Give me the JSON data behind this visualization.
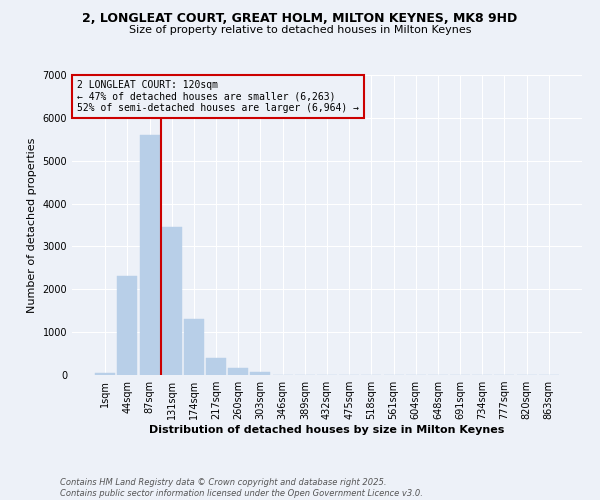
{
  "title_line1": "2, LONGLEAT COURT, GREAT HOLM, MILTON KEYNES, MK8 9HD",
  "title_line2": "Size of property relative to detached houses in Milton Keynes",
  "xlabel": "Distribution of detached houses by size in Milton Keynes",
  "ylabel": "Number of detached properties",
  "categories": [
    "1sqm",
    "44sqm",
    "87sqm",
    "131sqm",
    "174sqm",
    "217sqm",
    "260sqm",
    "303sqm",
    "346sqm",
    "389sqm",
    "432sqm",
    "475sqm",
    "518sqm",
    "561sqm",
    "604sqm",
    "648sqm",
    "691sqm",
    "734sqm",
    "777sqm",
    "820sqm",
    "863sqm"
  ],
  "values": [
    50,
    2300,
    5600,
    3450,
    1300,
    390,
    160,
    60,
    0,
    0,
    0,
    0,
    0,
    0,
    0,
    0,
    0,
    0,
    0,
    0,
    0
  ],
  "bar_color": "#b8cfe8",
  "bar_edgecolor": "#b8cfe8",
  "vline_color": "#cc0000",
  "ylim": [
    0,
    7000
  ],
  "yticks": [
    0,
    1000,
    2000,
    3000,
    4000,
    5000,
    6000,
    7000
  ],
  "annotation_title": "2 LONGLEAT COURT: 120sqm",
  "annotation_line2": "← 47% of detached houses are smaller (6,263)",
  "annotation_line3": "52% of semi-detached houses are larger (6,964) →",
  "annotation_box_color": "#cc0000",
  "footer_line1": "Contains HM Land Registry data © Crown copyright and database right 2025.",
  "footer_line2": "Contains public sector information licensed under the Open Government Licence v3.0.",
  "bg_color": "#edf1f8",
  "plot_bg_color": "#edf1f8",
  "grid_color": "#ffffff",
  "title_fontsize": 9,
  "subtitle_fontsize": 8,
  "xlabel_fontsize": 8,
  "ylabel_fontsize": 8,
  "tick_fontsize": 7,
  "footer_fontsize": 6
}
